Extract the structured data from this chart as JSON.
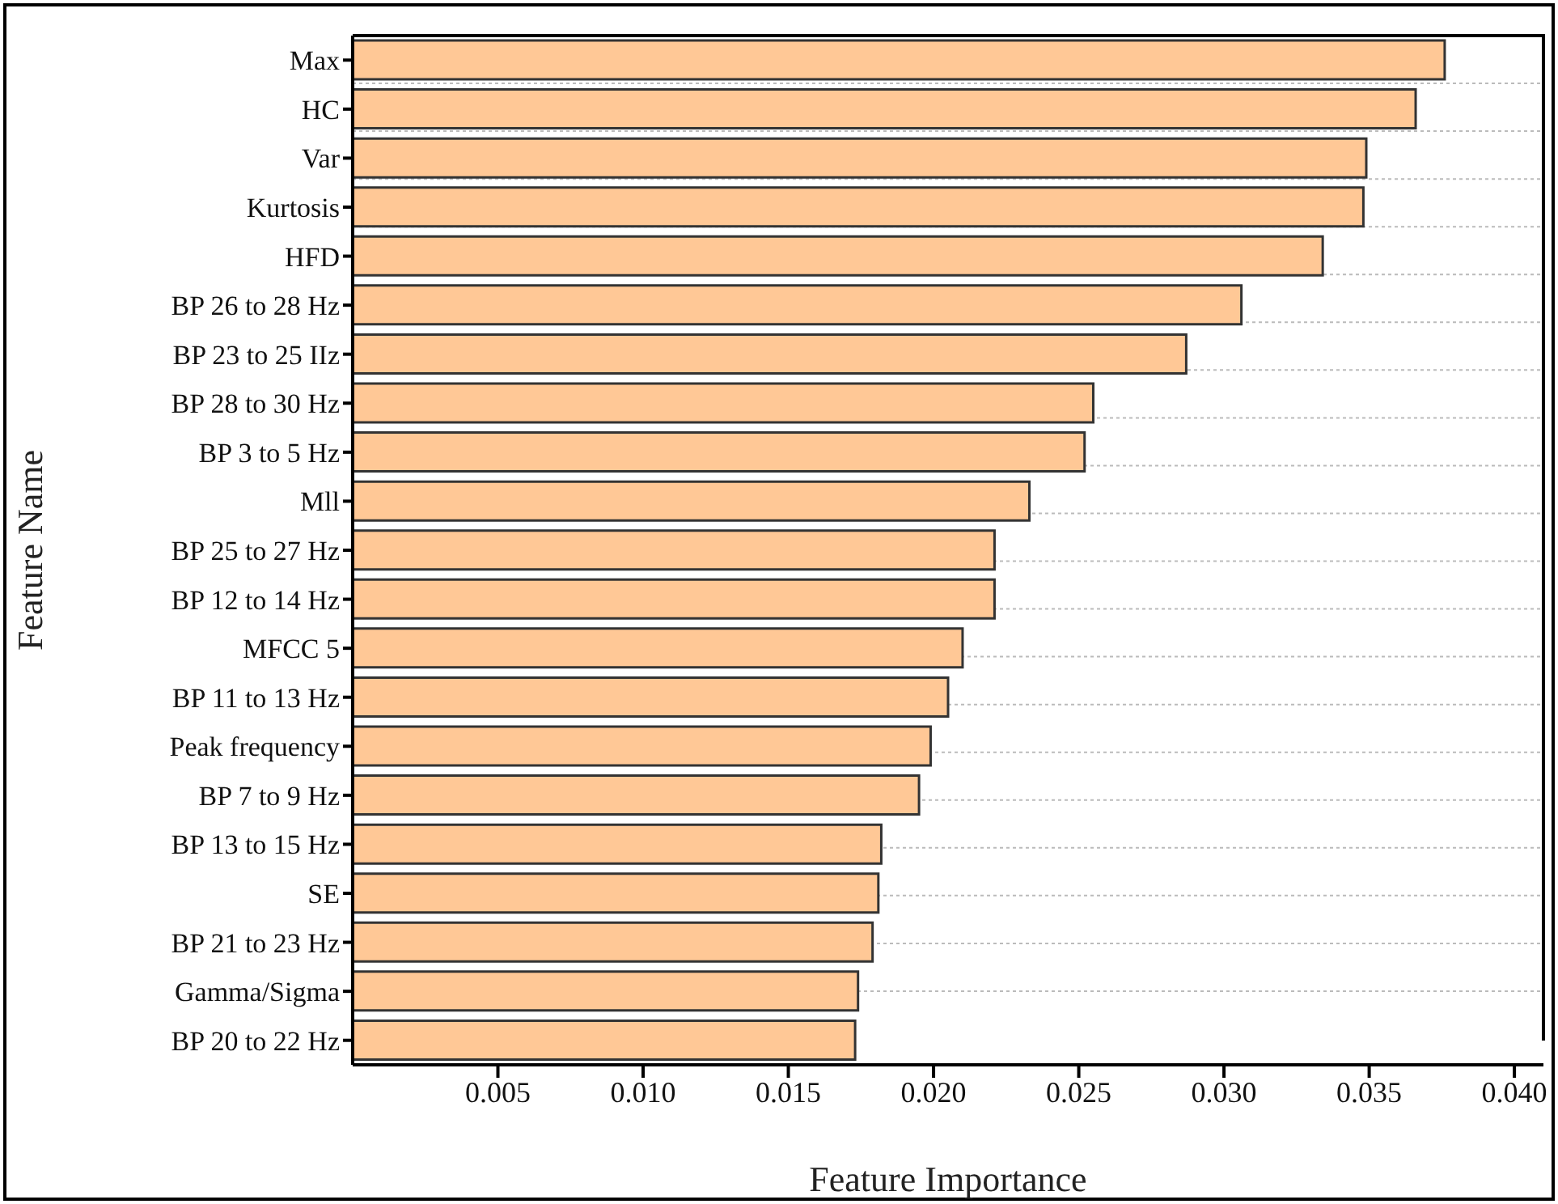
{
  "chart_data": {
    "type": "bar",
    "orientation": "horizontal",
    "xlabel": "Feature Importance",
    "ylabel": "Feature Name",
    "categories": [
      "Max",
      "HC",
      "Var",
      "Kurtosis",
      "HFD",
      "BP 26 to 28 Hz",
      "BP 23 to 25 IIz",
      "BP 28 to 30 Hz",
      "BP 3 to 5  Hz",
      "Mll",
      "BP 25 to 27 Hz",
      "BP 12 to 14 Hz",
      "MFCC 5",
      "BP 11 to 13 Hz",
      "Peak frequency ",
      "BP 7 to 9 Hz",
      "BP 13 to 15 Hz",
      "SE",
      "BP 21 to 23 Hz",
      "Gamma/Sigma",
      "BP 20 to 22 Hz"
    ],
    "values": [
      0.0376,
      0.0366,
      0.0349,
      0.0348,
      0.0334,
      0.0306,
      0.0287,
      0.0255,
      0.0252,
      0.0233,
      0.0221,
      0.0221,
      0.021,
      0.0205,
      0.0199,
      0.0195,
      0.0182,
      0.0181,
      0.0179,
      0.0174,
      0.0173
    ],
    "color": "#ffc896",
    "xlim": [
      0,
      0.041
    ],
    "xticks": [
      0.005,
      {
        "value": 0.01,
        "label": "0.010"
      },
      0.015,
      {
        "value": 0.02,
        "label": "0.020"
      },
      0.025,
      {
        "value": 0.03,
        "label": "0.030"
      },
      0.035,
      {
        "value": 0.04,
        "label": "0.040"
      }
    ],
    "grid": "y"
  }
}
